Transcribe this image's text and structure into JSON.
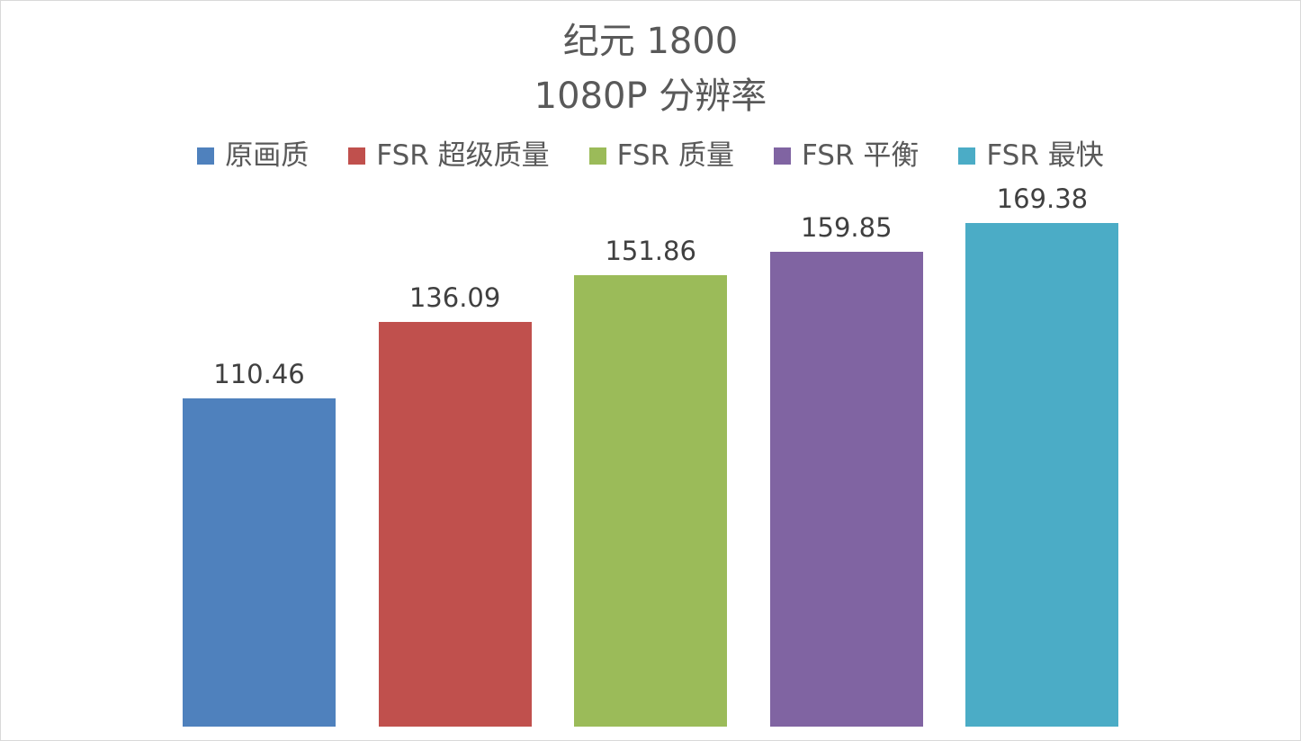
{
  "chart_data": {
    "type": "bar",
    "title": "纪元 1800",
    "subtitle": "1080P 分辨率",
    "categories": [
      "原画质",
      "FSR 超级质量",
      "FSR 质量",
      "FSR 平衡",
      "FSR 最快"
    ],
    "values": [
      110.46,
      136.09,
      151.86,
      159.85,
      169.38
    ],
    "value_labels": [
      "110.46",
      "136.09",
      "151.86",
      "159.85",
      "169.38"
    ],
    "colors": [
      "#4f81bd",
      "#c0504d",
      "#9bbb59",
      "#8064a2",
      "#4bacc6"
    ],
    "xlabel": "",
    "ylabel": "",
    "ylim": [
      0,
      180
    ],
    "grid": false,
    "legend_position": "top",
    "axes_visible": false
  }
}
